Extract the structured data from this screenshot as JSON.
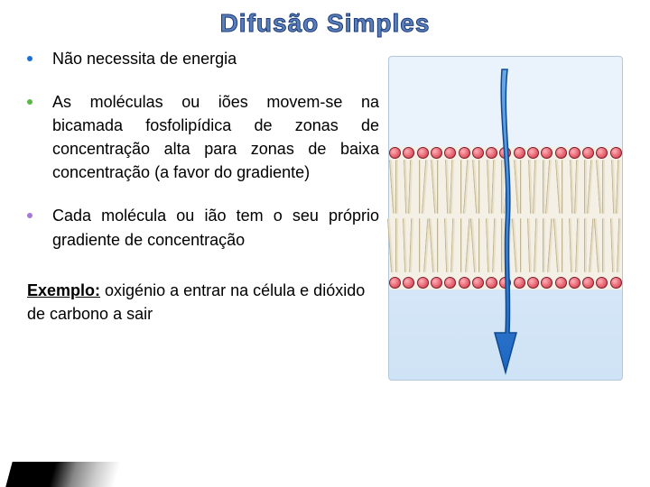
{
  "title": "Difusão Simples",
  "bullets": [
    {
      "color": "#1b70d6",
      "text": "Não necessita de energia"
    },
    {
      "color": "#5ab845",
      "text": "As moléculas ou iões movem-se na bicamada fosfolipídica de zonas de concentração alta para zonas de baixa concentração (a favor do gradiente)"
    },
    {
      "color": "#a678d8",
      "text": "Cada molécula ou ião tem o seu próprio gradiente de concentração"
    }
  ],
  "example": {
    "label": "Exemplo:",
    "text": " oxigénio a entrar  na célula e dióxido de carbono a sair"
  },
  "diagram": {
    "top_bg": "#eaf2fb",
    "mid_bg": "#f5f0e5",
    "bot_bg": "#d4e6f7",
    "head_fill": "#e0525f",
    "head_highlight": "#ffb0b8",
    "head_stroke": "#7a1f2c",
    "tail_fill": "#e8e0c8",
    "tail_stroke": "#bfb593",
    "arrow_color": "#2a7bd1",
    "arrow_stroke": "#0d4a8f",
    "n_lipids": 17
  },
  "title_color": "#5b7fb8",
  "title_stroke": "#1a3a7a"
}
